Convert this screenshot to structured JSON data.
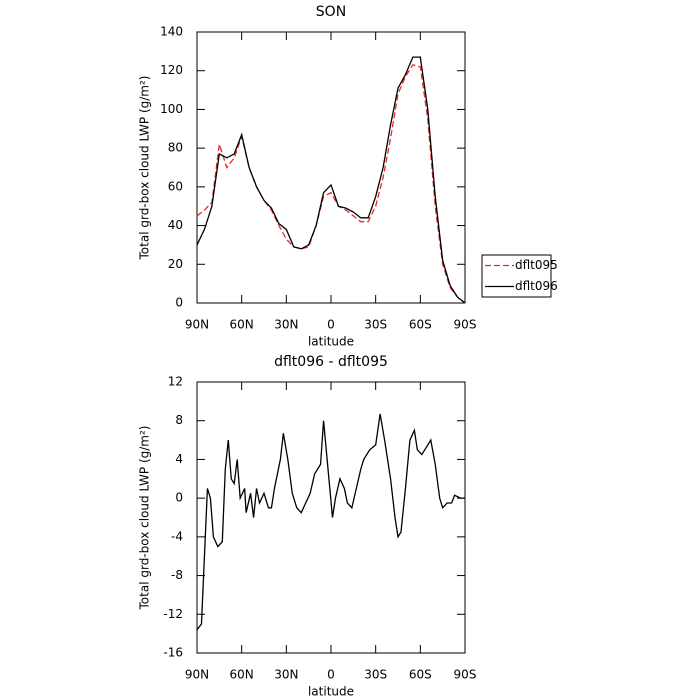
{
  "chart_data": [
    {
      "type": "line",
      "title": "SON",
      "x_label": "latitude",
      "y_label": "Total grd-box cloud LWP (g/m²)",
      "x": [
        90,
        85,
        80,
        75,
        70,
        65,
        60,
        55,
        50,
        45,
        40,
        35,
        30,
        25,
        20,
        15,
        10,
        5,
        0,
        -5,
        -10,
        -15,
        -20,
        -25,
        -30,
        -35,
        -40,
        -45,
        -50,
        -55,
        -60,
        -65,
        -70,
        -75,
        -80,
        -85,
        -90
      ],
      "series": [
        {
          "name": "dflt095",
          "color": "#e8262a",
          "line_style": "dashed",
          "values": [
            45,
            48,
            52,
            82,
            70,
            75,
            86,
            70,
            60,
            53,
            48,
            40,
            33,
            29,
            28,
            29,
            40,
            55,
            57,
            50,
            48,
            45,
            42,
            42,
            50,
            65,
            85,
            108,
            117,
            123,
            122,
            95,
            50,
            20,
            8,
            3,
            0
          ]
        },
        {
          "name": "dflt096",
          "color": "#000000",
          "line_style": "solid",
          "values": [
            30,
            38,
            50,
            77,
            75,
            77,
            87,
            70,
            60,
            53,
            49,
            41,
            38,
            29,
            28,
            30,
            40,
            57,
            61,
            50,
            49,
            47,
            44,
            44,
            55,
            70,
            92,
            111,
            118,
            127,
            127,
            100,
            55,
            22,
            9,
            3,
            0
          ]
        }
      ],
      "xlim": [
        90,
        -90
      ],
      "xticks": [
        {
          "value": 90,
          "label": "90N"
        },
        {
          "value": 60,
          "label": "60N"
        },
        {
          "value": 30,
          "label": "30N"
        },
        0,
        {
          "value": -30,
          "label": "30S"
        },
        {
          "value": -60,
          "label": "60S"
        },
        {
          "value": -90,
          "label": "90S"
        }
      ],
      "ylim": [
        0,
        140
      ],
      "yticks": [
        0,
        20,
        40,
        60,
        80,
        100,
        120,
        140
      ],
      "legend": "right"
    },
    {
      "type": "line",
      "title": "dflt096 - dflt095",
      "x_label": "latitude",
      "y_label": "Total grd-box cloud LWP (g/m²)",
      "x": [
        90,
        87,
        85,
        83,
        81,
        79,
        76,
        73,
        71,
        69,
        67,
        65,
        63,
        61,
        58,
        57,
        54,
        52,
        50,
        48,
        45,
        42,
        40,
        38,
        34,
        32,
        29,
        26,
        23,
        20,
        17,
        14,
        11,
        7,
        5,
        2,
        -1,
        -3,
        -6,
        -9,
        -11,
        -14,
        -17,
        -20,
        -22,
        -26,
        -30,
        -33,
        -36,
        -40,
        -43,
        -45,
        -47,
        -50,
        -53,
        -56,
        -58,
        -61,
        -65,
        -67,
        -70,
        -73,
        -75,
        -78,
        -81,
        -83,
        -87,
        -90
      ],
      "series": [
        {
          "name": "dflt096 - dflt095",
          "color": "#000000",
          "line_style": "solid",
          "values": [
            -13.6,
            -13,
            -6,
            1,
            0,
            -4,
            -5,
            -4.5,
            3,
            6,
            2,
            1.5,
            4,
            0,
            1,
            -1.5,
            0.5,
            -2,
            1,
            -0.5,
            0.5,
            -1,
            -1,
            1,
            4,
            6.7,
            4,
            0.5,
            -1,
            -1.5,
            -0.5,
            0.5,
            2.5,
            3.5,
            8,
            3,
            -2,
            0,
            2,
            1,
            -0.5,
            -1,
            1,
            3,
            4,
            5,
            5.5,
            8.7,
            6,
            2,
            -2,
            -4,
            -3.5,
            1,
            6,
            7,
            5,
            4.5,
            5.5,
            6,
            3.5,
            0,
            -1,
            -0.5,
            -0.5,
            0.3,
            0,
            0
          ]
        }
      ],
      "xlim": [
        90,
        -90
      ],
      "xticks": [
        {
          "value": 90,
          "label": "90N"
        },
        {
          "value": 60,
          "label": "60N"
        },
        {
          "value": 30,
          "label": "30N"
        },
        0,
        {
          "value": -30,
          "label": "30S"
        },
        {
          "value": -60,
          "label": "60S"
        },
        {
          "value": -90,
          "label": "90S"
        }
      ],
      "ylim": [
        -16,
        12
      ],
      "yticks": [
        -16,
        -12,
        -8,
        -4,
        0,
        4,
        8,
        12
      ]
    }
  ]
}
